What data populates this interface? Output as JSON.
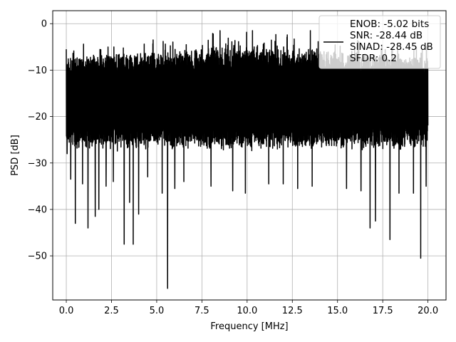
{
  "chart_data": {
    "type": "line",
    "xlabel": "Frequency [MHz]",
    "ylabel": "PSD [dB]",
    "xlim": [
      -0.75,
      21.0
    ],
    "ylim": [
      -59.5,
      2.8
    ],
    "xticks": [
      0.0,
      2.5,
      5.0,
      7.5,
      10.0,
      12.5,
      15.0,
      17.5,
      20.0
    ],
    "xtick_labels": [
      "0.0",
      "2.5",
      "5.0",
      "7.5",
      "10.0",
      "12.5",
      "15.0",
      "17.5",
      "20.0"
    ],
    "yticks": [
      0,
      -10,
      -20,
      -30,
      -40,
      -50
    ],
    "ytick_labels": [
      "0",
      "−10",
      "−20",
      "−30",
      "−40",
      "−50"
    ],
    "grid": true,
    "legend_position": "top-right",
    "series": [
      {
        "name": "ENOB: -5.02 bits\nSNR: -28.44 dB\nSINAD: -28.45 dB\nSFDR: 0.2",
        "color": "#000000",
        "x_range": [
          0.0,
          20.0
        ],
        "baseline_range": [
          -27.5,
          -7.5
        ],
        "spikes": [
          {
            "x": 0.0,
            "y": -5.5
          },
          {
            "x": 0.05,
            "y": -28.0
          },
          {
            "x": 0.25,
            "y": -33.5
          },
          {
            "x": 0.5,
            "y": -43.0
          },
          {
            "x": 0.9,
            "y": -34.5
          },
          {
            "x": 1.2,
            "y": -44.0
          },
          {
            "x": 1.6,
            "y": -41.5
          },
          {
            "x": 1.8,
            "y": -40.0
          },
          {
            "x": 2.2,
            "y": -35.0
          },
          {
            "x": 2.6,
            "y": -34.0
          },
          {
            "x": 3.2,
            "y": -47.5
          },
          {
            "x": 3.5,
            "y": -38.5
          },
          {
            "x": 3.7,
            "y": -47.5
          },
          {
            "x": 4.0,
            "y": -41.0
          },
          {
            "x": 4.5,
            "y": -33.0
          },
          {
            "x": 5.3,
            "y": -36.5
          },
          {
            "x": 5.6,
            "y": -57.0
          },
          {
            "x": 6.0,
            "y": -35.5
          },
          {
            "x": 6.5,
            "y": -34.0
          },
          {
            "x": 8.0,
            "y": -35.0
          },
          {
            "x": 9.2,
            "y": -36.0
          },
          {
            "x": 9.9,
            "y": -36.5
          },
          {
            "x": 11.2,
            "y": -34.5
          },
          {
            "x": 12.0,
            "y": -34.5
          },
          {
            "x": 12.8,
            "y": -35.5
          },
          {
            "x": 13.6,
            "y": -35.0
          },
          {
            "x": 15.5,
            "y": -35.5
          },
          {
            "x": 16.3,
            "y": -36.0
          },
          {
            "x": 16.8,
            "y": -44.0
          },
          {
            "x": 17.1,
            "y": -42.5
          },
          {
            "x": 17.9,
            "y": -46.5
          },
          {
            "x": 18.4,
            "y": -36.5
          },
          {
            "x": 19.2,
            "y": -36.5
          },
          {
            "x": 19.6,
            "y": -50.5
          },
          {
            "x": 19.9,
            "y": -35.0
          },
          {
            "x": 1.5,
            "y": -9.0
          },
          {
            "x": 4.8,
            "y": -3.5
          },
          {
            "x": 8.5,
            "y": -1.5
          },
          {
            "x": 10.3,
            "y": -1.5
          },
          {
            "x": 13.5,
            "y": -1.5
          }
        ]
      }
    ]
  }
}
